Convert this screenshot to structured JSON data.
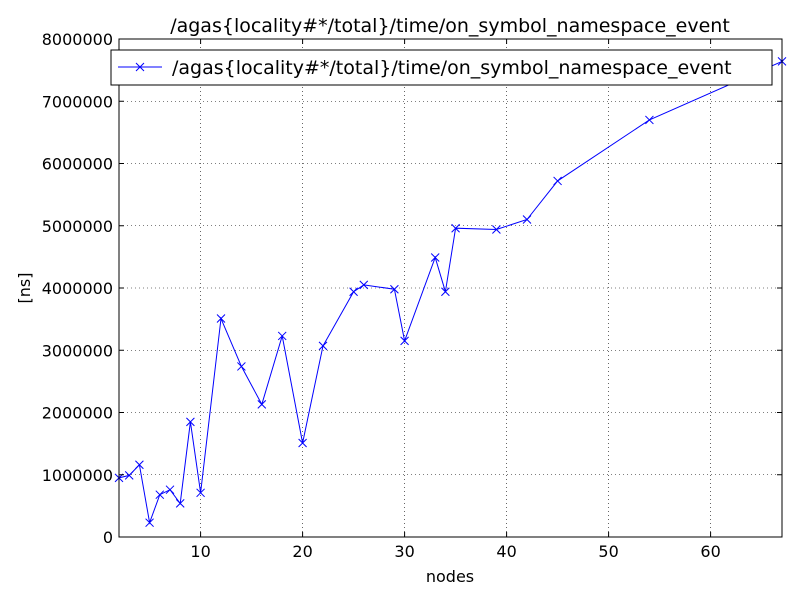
{
  "chart_data": {
    "type": "line",
    "title": "/agas{locality#*/total}/time/on_symbol_namespace_event",
    "xlabel": "nodes",
    "ylabel": "[ns]",
    "xlim": [
      2,
      67
    ],
    "ylim": [
      0,
      8000000
    ],
    "xticks": [
      10,
      20,
      30,
      40,
      50,
      60
    ],
    "yticks": [
      0,
      1000000,
      2000000,
      3000000,
      4000000,
      5000000,
      6000000,
      7000000,
      8000000
    ],
    "grid": true,
    "legend": {
      "position": "top"
    },
    "series": [
      {
        "name": "/agas{locality#*/total}/time/on_symbol_namespace_event",
        "color": "#0000ff",
        "marker": "x",
        "x": [
          2,
          3,
          4,
          5,
          6,
          7,
          8,
          9,
          10,
          12,
          14,
          16,
          18,
          20,
          22,
          25,
          26,
          29,
          30,
          33,
          34,
          35,
          39,
          42,
          45,
          54,
          67
        ],
        "y": [
          950000,
          990000,
          1160000,
          230000,
          680000,
          760000,
          540000,
          1850000,
          710000,
          3510000,
          2740000,
          2130000,
          3230000,
          1510000,
          3070000,
          3940000,
          4050000,
          3980000,
          3150000,
          4490000,
          3940000,
          4960000,
          4940000,
          5100000,
          5720000,
          6700000,
          7640000
        ]
      }
    ]
  }
}
